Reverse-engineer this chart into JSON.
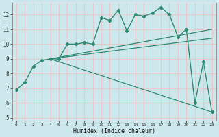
{
  "xlabel": "Humidex (Indice chaleur)",
  "background_color": "#cde8ec",
  "grid_color": "#e8c8c8",
  "line_color": "#2e8b72",
  "xlim": [
    -0.5,
    23.5
  ],
  "ylim": [
    4.8,
    12.8
  ],
  "yticks": [
    5,
    6,
    7,
    8,
    9,
    10,
    11,
    12
  ],
  "xticks": [
    0,
    1,
    2,
    3,
    4,
    5,
    6,
    7,
    8,
    9,
    10,
    11,
    12,
    13,
    14,
    15,
    16,
    17,
    18,
    19,
    20,
    21,
    22,
    23
  ],
  "curve1_x": [
    0,
    1,
    2,
    3,
    4,
    5,
    6,
    7,
    8,
    9,
    10,
    11,
    12,
    13,
    14,
    15,
    16,
    17,
    18,
    19,
    20,
    21,
    22,
    23
  ],
  "curve1_y": [
    6.9,
    7.4,
    8.5,
    8.9,
    9.0,
    9.0,
    10.0,
    10.0,
    10.1,
    10.0,
    11.8,
    11.6,
    12.3,
    10.9,
    12.0,
    11.9,
    12.1,
    12.5,
    12.0,
    10.5,
    11.0,
    6.0,
    8.8,
    5.4
  ],
  "line1_x": [
    4,
    23
  ],
  "line1_y": [
    9.0,
    11.0
  ],
  "line2_x": [
    4,
    23
  ],
  "line2_y": [
    9.0,
    5.4
  ],
  "line3_x": [
    4,
    23
  ],
  "line3_y": [
    9.0,
    10.4
  ]
}
